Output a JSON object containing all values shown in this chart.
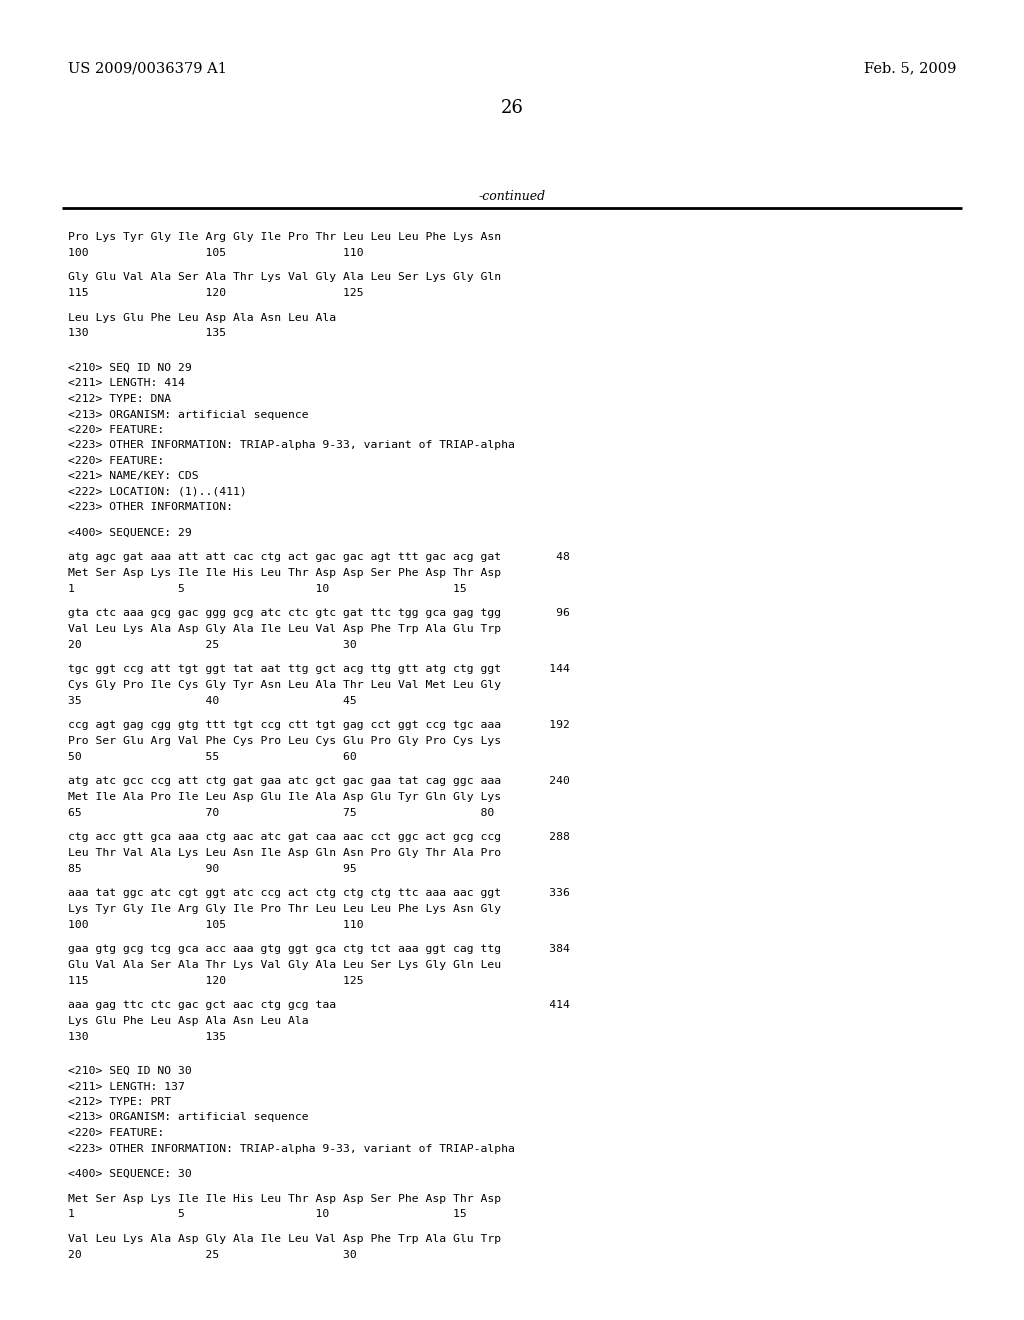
{
  "header_left": "US 2009/0036379 A1",
  "header_right": "Feb. 5, 2009",
  "page_number": "26",
  "continued_text": "-continued",
  "background_color": "#ffffff",
  "text_color": "#000000",
  "content": [
    "Pro Lys Tyr Gly Ile Arg Gly Ile Pro Thr Leu Leu Leu Phe Lys Asn",
    "100                 105                 110",
    "",
    "Gly Glu Val Ala Ser Ala Thr Lys Val Gly Ala Leu Ser Lys Gly Gln",
    "115                 120                 125",
    "",
    "Leu Lys Glu Phe Leu Asp Ala Asn Leu Ala",
    "130                 135",
    "",
    "",
    "<210> SEQ ID NO 29",
    "<211> LENGTH: 414",
    "<212> TYPE: DNA",
    "<213> ORGANISM: artificial sequence",
    "<220> FEATURE:",
    "<223> OTHER INFORMATION: TRIAP-alpha 9-33, variant of TRIAP-alpha",
    "<220> FEATURE:",
    "<221> NAME/KEY: CDS",
    "<222> LOCATION: (1)..(411)",
    "<223> OTHER INFORMATION:",
    "",
    "<400> SEQUENCE: 29",
    "",
    "atg agc gat aaa att att cac ctg act gac gac agt ttt gac acg gat        48",
    "Met Ser Asp Lys Ile Ile His Leu Thr Asp Asp Ser Phe Asp Thr Asp",
    "1               5                   10                  15",
    "",
    "gta ctc aaa gcg gac ggg gcg atc ctc gtc gat ttc tgg gca gag tgg        96",
    "Val Leu Lys Ala Asp Gly Ala Ile Leu Val Asp Phe Trp Ala Glu Trp",
    "20                  25                  30",
    "",
    "tgc ggt ccg att tgt ggt tat aat ttg gct acg ttg gtt atg ctg ggt       144",
    "Cys Gly Pro Ile Cys Gly Tyr Asn Leu Ala Thr Leu Val Met Leu Gly",
    "35                  40                  45",
    "",
    "ccg agt gag cgg gtg ttt tgt ccg ctt tgt gag cct ggt ccg tgc aaa       192",
    "Pro Ser Glu Arg Val Phe Cys Pro Leu Cys Glu Pro Gly Pro Cys Lys",
    "50                  55                  60",
    "",
    "atg atc gcc ccg att ctg gat gaa atc gct gac gaa tat cag ggc aaa       240",
    "Met Ile Ala Pro Ile Leu Asp Glu Ile Ala Asp Glu Tyr Gln Gly Lys",
    "65                  70                  75                  80",
    "",
    "ctg acc gtt gca aaa ctg aac atc gat caa aac cct ggc act gcg ccg       288",
    "Leu Thr Val Ala Lys Leu Asn Ile Asp Gln Asn Pro Gly Thr Ala Pro",
    "85                  90                  95",
    "",
    "aaa tat ggc atc cgt ggt atc ccg act ctg ctg ctg ttc aaa aac ggt       336",
    "Lys Tyr Gly Ile Arg Gly Ile Pro Thr Leu Leu Leu Phe Lys Asn Gly",
    "100                 105                 110",
    "",
    "gaa gtg gcg tcg gca acc aaa gtg ggt gca ctg tct aaa ggt cag ttg       384",
    "Glu Val Ala Ser Ala Thr Lys Val Gly Ala Leu Ser Lys Gly Gln Leu",
    "115                 120                 125",
    "",
    "aaa gag ttc ctc gac gct aac ctg gcg taa                               414",
    "Lys Glu Phe Leu Asp Ala Asn Leu Ala",
    "130                 135",
    "",
    "",
    "<210> SEQ ID NO 30",
    "<211> LENGTH: 137",
    "<212> TYPE: PRT",
    "<213> ORGANISM: artificial sequence",
    "<220> FEATURE:",
    "<223> OTHER INFORMATION: TRIAP-alpha 9-33, variant of TRIAP-alpha",
    "",
    "<400> SEQUENCE: 30",
    "",
    "Met Ser Asp Lys Ile Ile His Leu Thr Asp Asp Ser Phe Asp Thr Asp",
    "1               5                   10                  15",
    "",
    "Val Leu Lys Ala Asp Gly Ala Ile Leu Val Asp Phe Trp Ala Glu Trp",
    "20                  25                  30"
  ]
}
